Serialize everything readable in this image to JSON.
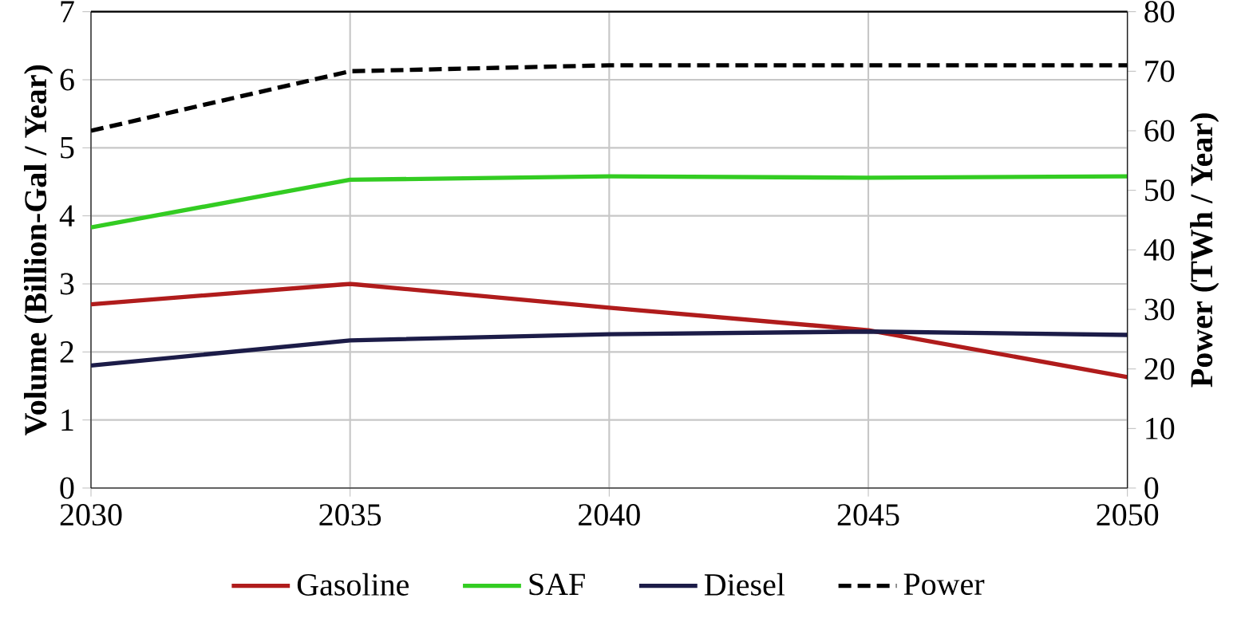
{
  "chart_data": {
    "type": "line",
    "x": [
      2030,
      2035,
      2040,
      2045,
      2050
    ],
    "ylabel": "Volume (Billion-Gal / Year)",
    "y2label": "Power (TWh / Year)",
    "xlim": [
      2030,
      2050
    ],
    "xticks": [
      2030,
      2035,
      2040,
      2045,
      2050
    ],
    "ylim": [
      0,
      7
    ],
    "yticks": [
      0,
      1,
      2,
      3,
      4,
      5,
      6,
      7
    ],
    "y2lim": [
      0,
      80
    ],
    "y2ticks": [
      0,
      10,
      20,
      30,
      40,
      50,
      60,
      70,
      80
    ],
    "grid": true,
    "legend": "bottom",
    "marker": "none",
    "series": [
      {
        "name": "Gasoline",
        "color": "#b01c1c",
        "values": [
          2.7,
          3.0,
          2.65,
          2.32,
          1.63
        ]
      },
      {
        "name": "SAF",
        "color": "#33cc22",
        "values": [
          3.83,
          4.53,
          4.58,
          4.56,
          4.58
        ]
      },
      {
        "name": "Diesel",
        "color": "#1c1c48",
        "values": [
          1.8,
          2.17,
          2.26,
          2.3,
          2.25
        ]
      },
      {
        "name": "Power",
        "color": "#000000",
        "values": [
          60,
          70,
          71,
          71,
          71
        ],
        "axis": "y2",
        "line_style": "dashed"
      }
    ]
  }
}
